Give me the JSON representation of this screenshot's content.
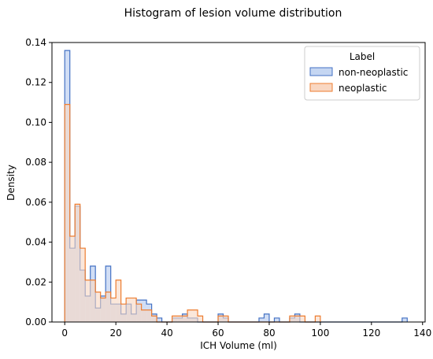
{
  "chart_data": {
    "type": "histogram",
    "title": "Histogram of lesion volume distribution",
    "xlabel": "ICH Volume (ml)",
    "ylabel": "Density",
    "xlim": [
      -5,
      141
    ],
    "ylim": [
      0,
      0.14
    ],
    "x_ticks": [
      0,
      20,
      40,
      60,
      80,
      100,
      120,
      140
    ],
    "y_ticks": [
      0.0,
      0.02,
      0.04,
      0.06,
      0.08,
      0.1,
      0.12,
      0.14
    ],
    "y_tick_labels": [
      "0.00",
      "0.02",
      "0.04",
      "0.06",
      "0.08",
      "0.10",
      "0.12",
      "0.14"
    ],
    "grid": false,
    "legend": {
      "title": "Label",
      "placement": "top-right",
      "entries": [
        "non-neoplastic",
        "neoplastic"
      ]
    },
    "bin_start": 0,
    "bin_width": 2,
    "series": [
      {
        "name": "non-neoplastic",
        "color": "#4472C4",
        "fill": "#c5d6f2",
        "values": [
          0.136,
          0.037,
          0.058,
          0.026,
          0.013,
          0.028,
          0.007,
          0.013,
          0.028,
          0.009,
          0.009,
          0.004,
          0.009,
          0.004,
          0.011,
          0.011,
          0.009,
          0.004,
          0.002,
          0.0,
          0.0,
          0.002,
          0.002,
          0.004,
          0.002,
          0.002,
          0.0,
          0.0,
          0.0,
          0.0,
          0.004,
          0.002,
          0.0,
          0.0,
          0.0,
          0.0,
          0.0,
          0.0,
          0.002,
          0.004,
          0.0,
          0.002,
          0.0,
          0.0,
          0.002,
          0.004,
          0.0,
          0.0,
          0.0,
          0.0,
          0.0,
          0.0,
          0.0,
          0.0,
          0.0,
          0.0,
          0.0,
          0.0,
          0.0,
          0.0,
          0.0,
          0.0,
          0.0,
          0.0,
          0.0,
          0.0,
          0.002
        ]
      },
      {
        "name": "neoplastic",
        "color": "#ED7D31",
        "fill": "#f9d7c2",
        "values": [
          0.109,
          0.043,
          0.059,
          0.037,
          0.021,
          0.021,
          0.015,
          0.012,
          0.015,
          0.012,
          0.021,
          0.009,
          0.012,
          0.012,
          0.009,
          0.006,
          0.006,
          0.003,
          0.0,
          0.0,
          0.0,
          0.003,
          0.003,
          0.003,
          0.006,
          0.006,
          0.003,
          0.0,
          0.0,
          0.0,
          0.003,
          0.003,
          0.0,
          0.0,
          0.0,
          0.0,
          0.0,
          0.0,
          0.0,
          0.0,
          0.0,
          0.0,
          0.0,
          0.0,
          0.003,
          0.003,
          0.003,
          0.0,
          0.0,
          0.003
        ]
      }
    ]
  }
}
